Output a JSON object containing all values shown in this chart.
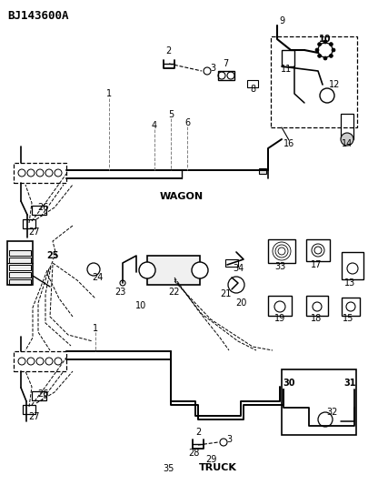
{
  "title": "BJ143600A",
  "bg_color": "#ffffff",
  "line_color": "#000000",
  "fig_width": 4.05,
  "fig_height": 5.33,
  "dpi": 100,
  "wagon_label": "WAGON",
  "truck_label": "TRUCK",
  "title_fontsize": 9
}
